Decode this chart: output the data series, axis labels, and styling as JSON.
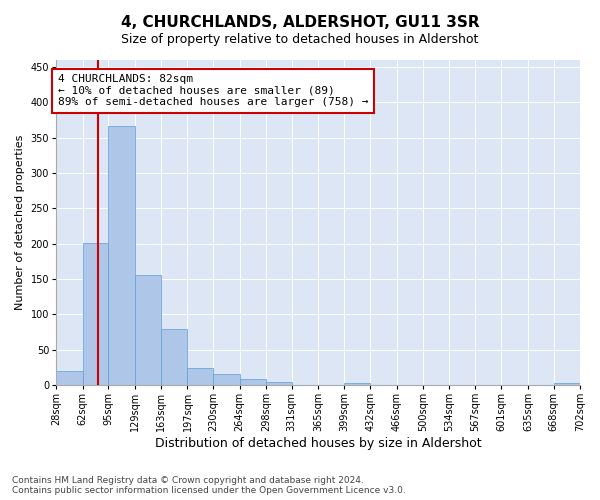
{
  "title": "4, CHURCHLANDS, ALDERSHOT, GU11 3SR",
  "subtitle": "Size of property relative to detached houses in Aldershot",
  "xlabel": "Distribution of detached houses by size in Aldershot",
  "ylabel": "Number of detached properties",
  "bin_edges": [
    28,
    62,
    95,
    129,
    163,
    197,
    230,
    264,
    298,
    331,
    365,
    399,
    432,
    466,
    500,
    534,
    567,
    601,
    635,
    668,
    702
  ],
  "bar_heights": [
    20,
    201,
    366,
    156,
    79,
    24,
    16,
    8,
    5,
    0,
    0,
    3,
    0,
    0,
    0,
    0,
    0,
    0,
    0,
    3
  ],
  "bar_color": "#aec6e8",
  "bar_edge_color": "#5a9fd4",
  "property_sqm": 82,
  "vline_color": "#cc0000",
  "annotation_text": "4 CHURCHLANDS: 82sqm\n← 10% of detached houses are smaller (89)\n89% of semi-detached houses are larger (758) →",
  "annotation_box_color": "#ffffff",
  "annotation_box_edge_color": "#cc0000",
  "ylim": [
    0,
    460
  ],
  "yticks": [
    0,
    50,
    100,
    150,
    200,
    250,
    300,
    350,
    400,
    450
  ],
  "bg_color": "#dce6f5",
  "fig_bg_color": "#ffffff",
  "footer_text": "Contains HM Land Registry data © Crown copyright and database right 2024.\nContains public sector information licensed under the Open Government Licence v3.0.",
  "title_fontsize": 11,
  "subtitle_fontsize": 9,
  "xlabel_fontsize": 9,
  "ylabel_fontsize": 8,
  "tick_fontsize": 7,
  "annotation_fontsize": 8,
  "footer_fontsize": 6.5
}
